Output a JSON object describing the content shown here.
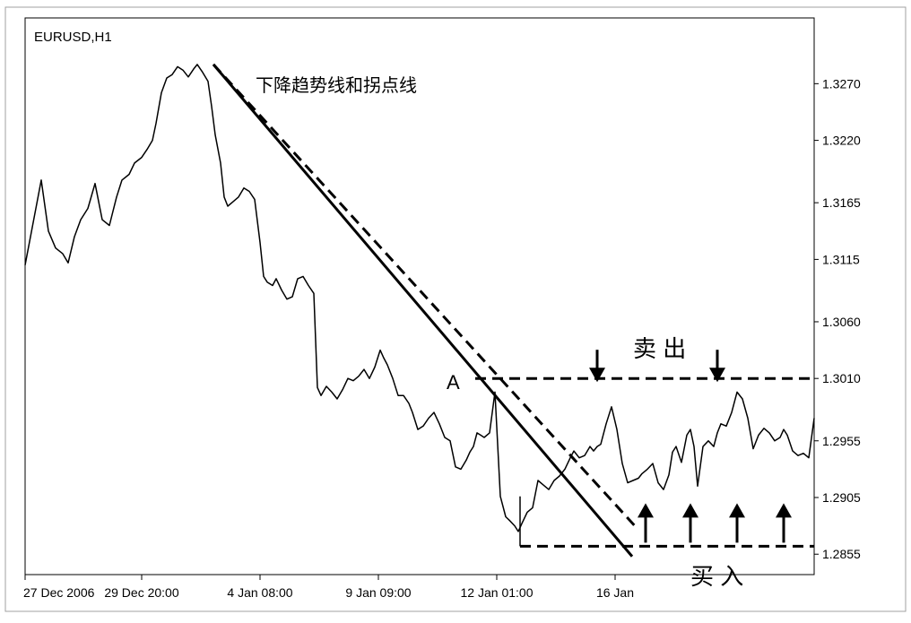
{
  "chart_data": {
    "type": "line",
    "title": "EURUSD,H1",
    "symbol": "EURUSD",
    "timeframe": "H1",
    "y_ticks": [
      "1.3270",
      "1.3220",
      "1.3165",
      "1.3115",
      "1.3060",
      "1.3010",
      "1.2955",
      "1.2905",
      "1.2855"
    ],
    "y_tick_values": [
      1.327,
      1.322,
      1.3165,
      1.3115,
      1.306,
      1.301,
      1.2955,
      1.2905,
      1.2855
    ],
    "ylim": [
      1.2837,
      1.3328
    ],
    "x_ticks": [
      "27 Dec 2006",
      "29 Dec 20:00",
      "4 Jan 08:00",
      "9 Jan 09:00",
      "12 Jan 01:00",
      "16 Jan"
    ],
    "x_tick_positions": [
      0,
      130,
      262,
      394,
      526,
      658
    ],
    "xlim": [
      0,
      880
    ],
    "series": [
      {
        "name": "EURUSD close",
        "x": [
          0,
          12,
          18,
          26,
          34,
          42,
          48,
          55,
          62,
          70,
          78,
          86,
          94,
          102,
          108,
          116,
          122,
          130,
          136,
          142,
          146,
          152,
          158,
          164,
          170,
          176,
          182,
          188,
          192,
          198,
          204,
          208,
          212,
          218,
          222,
          226,
          232,
          238,
          244,
          250,
          256,
          262,
          266,
          270,
          276,
          280,
          286,
          292,
          298,
          304,
          310,
          316,
          322,
          326,
          330,
          336,
          342,
          348,
          354,
          360,
          366,
          372,
          378,
          384,
          390,
          396,
          400,
          404,
          410,
          416,
          422,
          428,
          432,
          438,
          444,
          450,
          456,
          462,
          468,
          474,
          480,
          486,
          492,
          496,
          500,
          504,
          508,
          512,
          518,
          524,
          530,
          536,
          540,
          546,
          550,
          554,
          560,
          566,
          572,
          578,
          584,
          590,
          596,
          602,
          608,
          612,
          618,
          624,
          630,
          634,
          638,
          642,
          648,
          654,
          660,
          666,
          672,
          678,
          684,
          688,
          694,
          700,
          706,
          712,
          718,
          722,
          726,
          732,
          738,
          742,
          746,
          750,
          756,
          762,
          768,
          772,
          776,
          782,
          788,
          794,
          800,
          806,
          812,
          818,
          824,
          830,
          836,
          842,
          846,
          850,
          856,
          862,
          868,
          874,
          880
        ],
        "values": [
          1.311,
          1.316,
          1.3185,
          1.314,
          1.3125,
          1.312,
          1.3112,
          1.3135,
          1.315,
          1.316,
          1.3182,
          1.315,
          1.3145,
          1.317,
          1.3185,
          1.319,
          1.32,
          1.3205,
          1.3212,
          1.322,
          1.3235,
          1.3262,
          1.3275,
          1.3278,
          1.3285,
          1.3282,
          1.3276,
          1.3283,
          1.3287,
          1.328,
          1.3272,
          1.325,
          1.3225,
          1.32,
          1.317,
          1.3162,
          1.3166,
          1.317,
          1.3178,
          1.3175,
          1.3168,
          1.313,
          1.31,
          1.3095,
          1.3092,
          1.3098,
          1.3088,
          1.308,
          1.3082,
          1.3098,
          1.31,
          1.3092,
          1.3085,
          1.3002,
          1.2995,
          1.3003,
          1.2998,
          1.2992,
          1.3,
          1.301,
          1.3008,
          1.3012,
          1.3018,
          1.301,
          1.302,
          1.3035,
          1.3028,
          1.3022,
          1.301,
          1.2995,
          1.2995,
          1.2988,
          1.298,
          1.2965,
          1.2968,
          1.2975,
          1.298,
          1.297,
          1.2958,
          1.2955,
          1.2932,
          1.293,
          1.2938,
          1.2945,
          1.295,
          1.2962,
          1.296,
          1.2958,
          1.2962,
          1.2998,
          1.2906,
          1.2888,
          1.2885,
          1.288,
          1.2875,
          1.2882,
          1.2892,
          1.2896,
          1.292,
          1.2916,
          1.2912,
          1.292,
          1.2924,
          1.293,
          1.294,
          1.2946,
          1.294,
          1.2942,
          1.295,
          1.2946,
          1.295,
          1.2952,
          1.297,
          1.2985,
          1.2965,
          1.2935,
          1.2918,
          1.292,
          1.2922,
          1.2926,
          1.293,
          1.2935,
          1.2918,
          1.2912,
          1.2925,
          1.2945,
          1.295,
          1.2936,
          1.296,
          1.2965,
          1.295,
          1.2915,
          1.295,
          1.2955,
          1.295,
          1.2962,
          1.297,
          1.2968,
          1.298,
          1.2998,
          1.2992,
          1.2975,
          1.2948,
          1.296,
          1.2966,
          1.2962,
          1.2955,
          1.2958,
          1.2965,
          1.296,
          1.2946,
          1.2942,
          1.2944,
          1.294,
          1.2975
        ]
      }
    ],
    "trendlines": [
      {
        "name": "downtrend-line",
        "style": "solid",
        "x1": 210,
        "y1": 1.3287,
        "x2": 677,
        "y2": 1.2853
      },
      {
        "name": "pivot-line",
        "style": "dashed",
        "x1": 210,
        "y1": 1.3287,
        "x2": 680,
        "y2": 1.288
      }
    ],
    "levels": [
      {
        "name": "sell-level",
        "style": "dashed",
        "x_start": 502,
        "x_end": 880,
        "value": 1.301
      },
      {
        "name": "buy-level",
        "style": "dashed",
        "x_start": 552,
        "x_end": 880,
        "value": 1.2862
      }
    ],
    "sell_arrows_x": [
      638,
      772
    ],
    "buy_arrows_x": [
      692,
      742,
      794,
      846
    ],
    "annotations": {
      "trend_label": "下降趋势线和拐点线",
      "point_a": "A",
      "sell_label": "卖 出",
      "buy_label": "买 入"
    }
  }
}
